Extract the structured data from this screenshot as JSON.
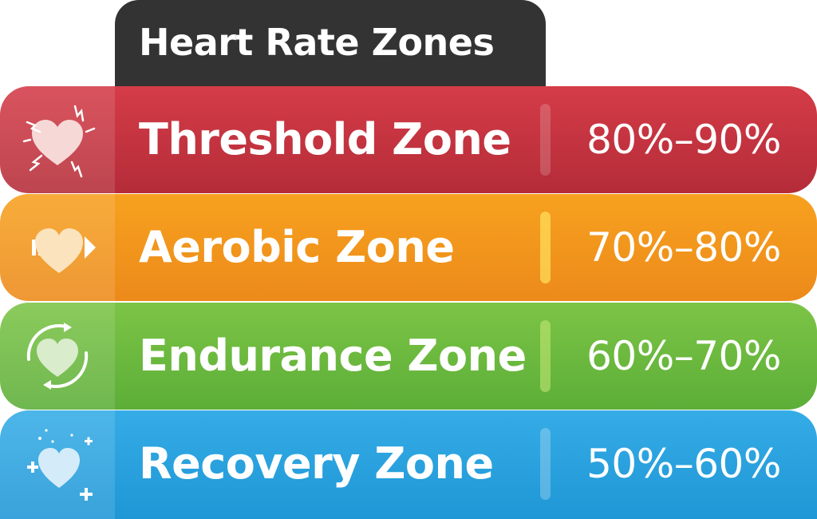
{
  "header": {
    "title": "Heart Rate Zones"
  },
  "zones": [
    {
      "name": "Threshold Zone",
      "range": "80%–90%",
      "icon": "heart-burst-icon",
      "color": "#c4343f"
    },
    {
      "name": "Aerobic Zone",
      "range": "70%–80%",
      "icon": "heart-arrow-icon",
      "color": "#f2961c"
    },
    {
      "name": "Endurance Zone",
      "range": "60%–70%",
      "icon": "heart-cycle-icon",
      "color": "#6cba3f"
    },
    {
      "name": "Recovery Zone",
      "range": "50%–60%",
      "icon": "heart-sparkle-icon",
      "color": "#2aa2de"
    }
  ]
}
